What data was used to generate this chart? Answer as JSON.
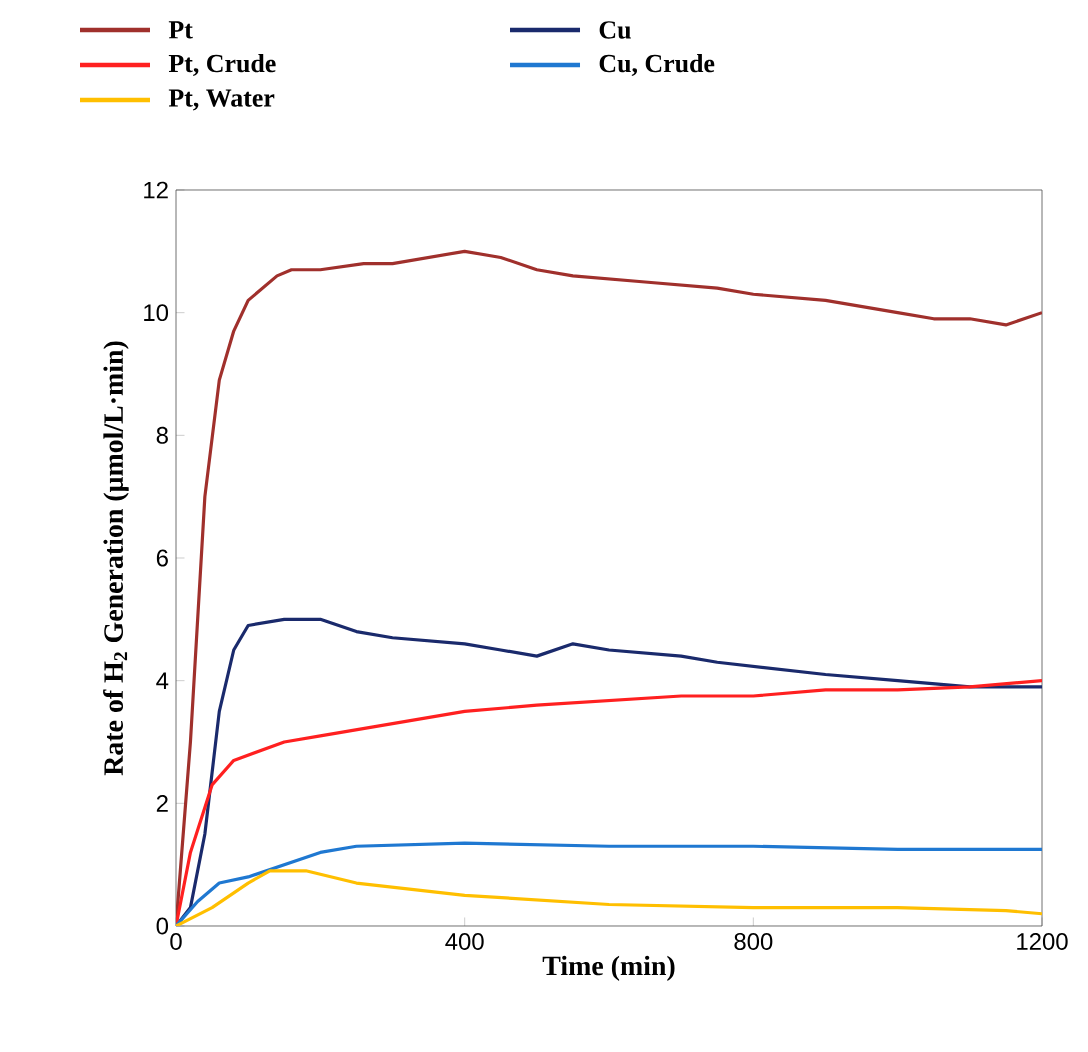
{
  "chart_data": {
    "type": "line",
    "xlabel": "Time (min)",
    "ylabel": "Rate of H$_{2}$ Generation (μmol/L·min)",
    "xlim": [
      0,
      1200
    ],
    "xticks": [
      0,
      400,
      800,
      1200
    ],
    "ylim": [
      0,
      12
    ],
    "yticks": [
      0,
      2,
      4,
      6,
      8,
      10,
      12
    ],
    "legend": "top",
    "grid": false,
    "series": [
      {
        "name": "Pt",
        "color": "#a0302c",
        "x": [
          0,
          20,
          40,
          60,
          80,
          100,
          140,
          160,
          200,
          260,
          300,
          350,
          400,
          450,
          500,
          550,
          650,
          750,
          800,
          900,
          1000,
          1050,
          1100,
          1150,
          1200
        ],
        "values": [
          0,
          3,
          7,
          8.9,
          9.7,
          10.2,
          10.6,
          10.7,
          10.7,
          10.8,
          10.8,
          10.9,
          11.0,
          10.9,
          10.7,
          10.6,
          10.5,
          10.4,
          10.3,
          10.2,
          10.0,
          9.9,
          9.9,
          9.8,
          10.0
        ]
      },
      {
        "name": "Cu",
        "color": "#1a2a6c",
        "x": [
          0,
          20,
          40,
          60,
          80,
          100,
          150,
          200,
          250,
          300,
          400,
          450,
          500,
          550,
          600,
          700,
          750,
          900,
          1000,
          1100,
          1200
        ],
        "values": [
          0,
          0.3,
          1.5,
          3.5,
          4.5,
          4.9,
          5.0,
          5.0,
          4.8,
          4.7,
          4.6,
          4.5,
          4.4,
          4.6,
          4.5,
          4.4,
          4.3,
          4.1,
          4.0,
          3.9,
          3.9
        ]
      },
      {
        "name": "Pt, Crude",
        "color": "#ff2020",
        "x": [
          0,
          20,
          50,
          80,
          150,
          200,
          300,
          400,
          500,
          700,
          800,
          900,
          1000,
          1100,
          1200
        ],
        "values": [
          0,
          1.2,
          2.3,
          2.7,
          3.0,
          3.1,
          3.3,
          3.5,
          3.6,
          3.75,
          3.75,
          3.85,
          3.85,
          3.9,
          4.0
        ]
      },
      {
        "name": "Cu, Crude",
        "color": "#1f78d1",
        "x": [
          0,
          30,
          60,
          100,
          150,
          200,
          250,
          400,
          600,
          800,
          1000,
          1200
        ],
        "values": [
          0,
          0.4,
          0.7,
          0.8,
          1.0,
          1.2,
          1.3,
          1.35,
          1.3,
          1.3,
          1.25,
          1.25
        ]
      },
      {
        "name": "Pt, Water",
        "color": "#ffbf00",
        "x": [
          0,
          50,
          100,
          130,
          180,
          250,
          400,
          600,
          800,
          1000,
          1150,
          1200
        ],
        "values": [
          0,
          0.3,
          0.7,
          0.9,
          0.9,
          0.7,
          0.5,
          0.35,
          0.3,
          0.3,
          0.25,
          0.2
        ]
      }
    ]
  }
}
